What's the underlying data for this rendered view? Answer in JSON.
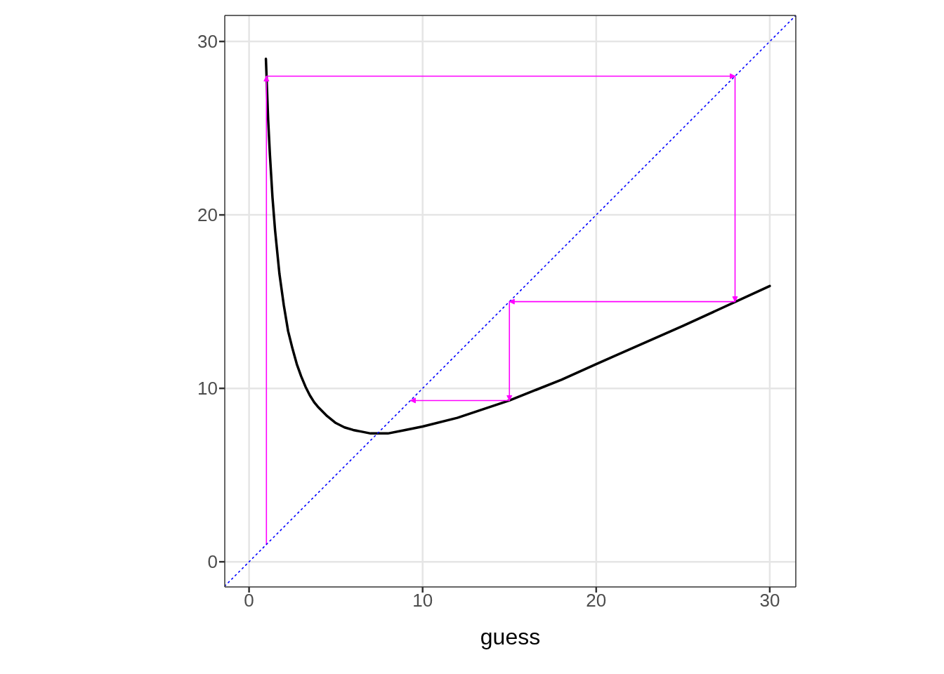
{
  "chart_data": {
    "type": "line",
    "xlabel": "guess",
    "xlim": [
      -1.4,
      31.5
    ],
    "ylim": [
      -1.45,
      31.5
    ],
    "xticks": [
      0,
      10,
      20,
      30
    ],
    "yticks": [
      0,
      10,
      20,
      30
    ],
    "grid": true,
    "marker": "none",
    "series": [
      {
        "color": "#000000",
        "line_style": "solid",
        "x": [
          0.97,
          1.1,
          1.2,
          1.35,
          1.5,
          1.75,
          2,
          2.25,
          2.5,
          2.75,
          3,
          3.25,
          3.5,
          3.75,
          4,
          4.5,
          5,
          5.5,
          6,
          6.5,
          7,
          7.4,
          8,
          9,
          10,
          12,
          15,
          18,
          20,
          25,
          30
        ],
        "values": [
          29,
          25.5,
          23.5,
          21.0,
          19.1,
          16.6,
          14.8,
          13.3,
          12.3,
          11.4,
          10.7,
          10.1,
          9.6,
          9.2,
          8.9,
          8.4,
          8.0,
          7.75,
          7.6,
          7.5,
          7.4,
          7.4,
          7.4,
          7.6,
          7.8,
          8.3,
          9.3,
          10.5,
          11.4,
          13.6,
          15.9
        ]
      },
      {
        "color": "#ff00ff",
        "line_style": "solid",
        "x": [
          1,
          1,
          28,
          28,
          15,
          15,
          9.3
        ],
        "values": [
          1,
          28,
          28,
          15,
          15,
          9.3,
          9.3
        ]
      },
      {
        "color": "#0000ff",
        "line_style": "dotted",
        "x": [
          -1.4,
          31.5
        ],
        "values": [
          -1.4,
          31.5
        ]
      }
    ]
  }
}
